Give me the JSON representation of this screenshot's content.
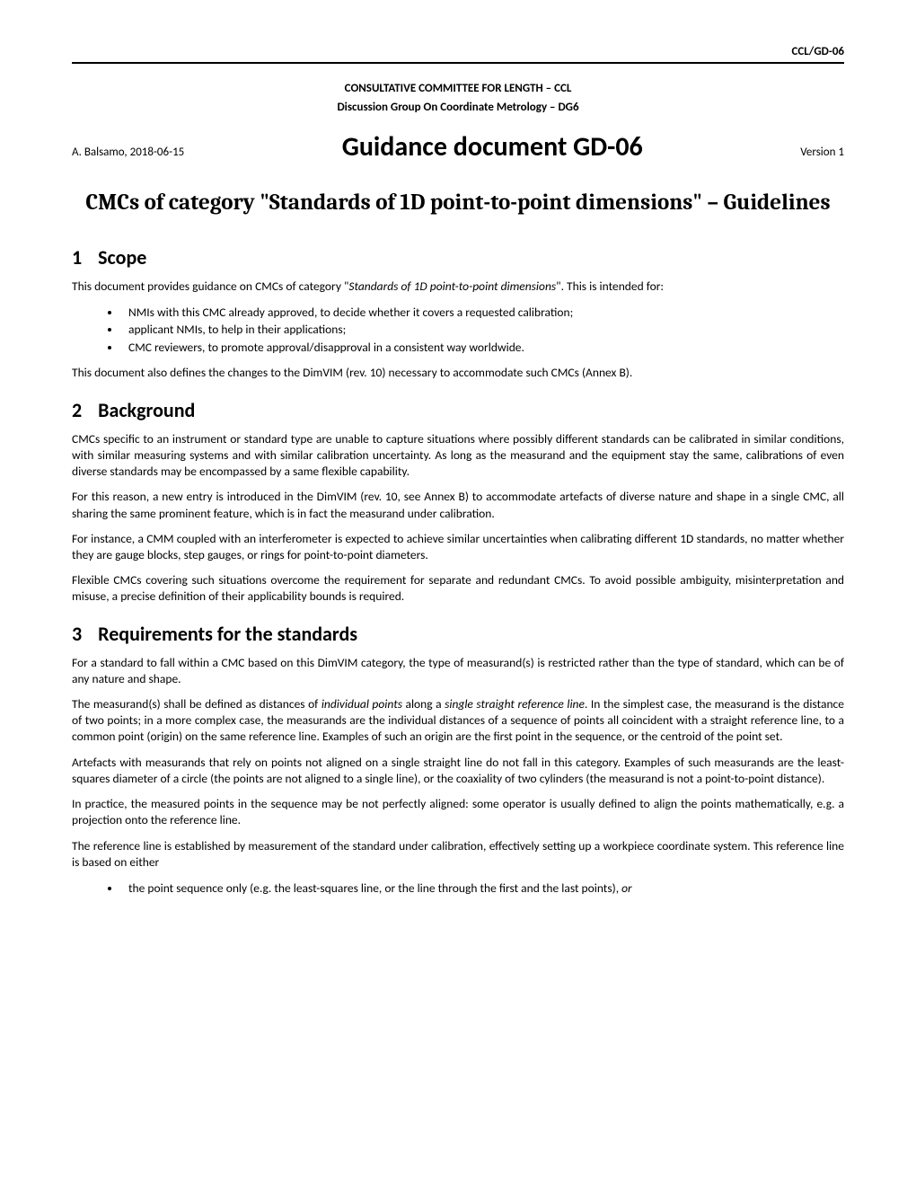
{
  "header": {
    "doc_code": "CCL/GD-06",
    "committee": "CONSULTATIVE COMMITTEE FOR LENGTH – CCL",
    "discussion_group": "Discussion Group On Coordinate Metrology – DG6",
    "author_date": "A. Balsamo, 2018-06-15",
    "guidance_title": "Guidance document GD-06",
    "version": "Version 1"
  },
  "main_title": "CMCs of category \"Standards of 1D point-to-point dimensions\" – Guidelines",
  "sections": {
    "scope": {
      "number": "1",
      "title": "Scope",
      "intro": "This document provides guidance on CMCs of category \"",
      "intro_italic": "Standards of 1D point-to-point dimensions",
      "intro_end": "\". This is intended for:",
      "bullets": [
        "NMIs with this CMC already approved, to decide whether it covers a requested calibration;",
        "applicant NMIs, to help in their applications;",
        "CMC reviewers, to promote approval/disapproval in a consistent way worldwide."
      ],
      "closing": "This document also defines the changes to the DimVIM (rev. 10) necessary to accommodate such CMCs (Annex B)."
    },
    "background": {
      "number": "2",
      "title": "Background",
      "p1": "CMCs specific to an instrument or standard type are unable to capture situations where possibly different standards can be calibrated in similar conditions, with similar measuring systems and with similar calibration uncertainty. As long as the measurand and the equipment stay the same, calibrations of even diverse standards may be encompassed by a same flexible capability.",
      "p2": "For this reason, a new entry is introduced in the DimVIM (rev. 10, see Annex B) to accommodate artefacts of diverse nature and shape in a single CMC, all sharing the same prominent feature, which is in fact the measurand under calibration.",
      "p3": "For instance, a CMM coupled with an interferometer is expected to achieve similar uncertainties when calibrating different 1D standards, no matter whether they are gauge blocks, step gauges, or rings for point-to-point diameters.",
      "p4": "Flexible CMCs covering such situations overcome the requirement for separate and redundant CMCs. To avoid possible ambiguity, misinterpretation and misuse, a precise definition of their applicability bounds is required."
    },
    "requirements": {
      "number": "3",
      "title": "Requirements for the standards",
      "p1": "For a standard to fall within a CMC based on this DimVIM category, the type of measurand(s) is restricted rather than the type of standard, which can be of any nature and shape.",
      "p2_a": "The measurand(s) shall be defined as distances of ",
      "p2_i1": "individual points",
      "p2_b": " along a ",
      "p2_i2": "single straight reference line",
      "p2_c": ". In the simplest case, the measurand is the distance of two points; in a more complex case, the measurands are the individual distances of a sequence of points all coincident with a straight reference line, to a common point (origin) on the same reference line. Examples of such an origin are the first point in the sequence, or the centroid of the point set.",
      "p3": "Artefacts with measurands that rely on points not aligned on a single straight line do not fall in this category. Examples of such measurands are the least-squares diameter of a circle (the points are not aligned to a single line), or the coaxiality of two cylinders (the measurand is not a point-to-point distance).",
      "p4": "In practice, the measured points in the sequence may be not perfectly aligned: some operator is usually defined to align the points mathematically, e.g. a projection onto the reference line.",
      "p5": "The reference line is established by measurement of the standard under calibration, effectively setting up a workpiece coordinate system. This reference line is based on either",
      "bullet_a": "the point sequence only (e.g. the least-squares line, or the line through the first and the last points), ",
      "bullet_i": "or"
    }
  }
}
